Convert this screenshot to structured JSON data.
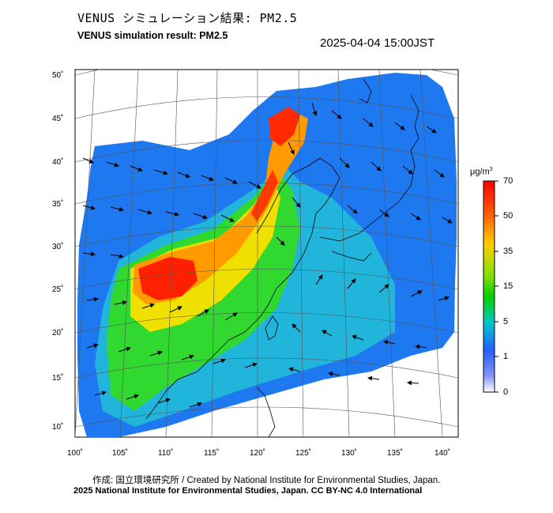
{
  "header": {
    "title_ja": "VENUS シミュレーション結果: PM2.5",
    "title_en": "VENUS simulation result: PM2.5",
    "timestamp": "2025-04-04 15:00JST"
  },
  "footer": {
    "credit": "作成: 国立環境研究所 / Created by National Institute for Environmental Studies, Japan.",
    "copyright": "2025 National Institute for Environmental Studies, Japan. CC BY-NC 4.0 International"
  },
  "map": {
    "lon_ticks": [
      "100˚",
      "105˚",
      "110˚",
      "115˚",
      "120˚",
      "125˚",
      "130˚",
      "135˚",
      "140˚"
    ],
    "lat_ticks": [
      "50˚",
      "45˚",
      "40˚",
      "35˚",
      "30˚",
      "25˚",
      "20˚",
      "15˚",
      "10˚"
    ]
  },
  "colorbar": {
    "unit_base": "μg/m",
    "unit_exp": "3",
    "ticks": [
      "70",
      "50",
      "35",
      "15",
      "5",
      "1",
      "0"
    ],
    "stops": [
      "#ff0000",
      "#ff8000",
      "#ffd000",
      "#00e000",
      "#00d0d0",
      "#1070ff",
      "#ffffff"
    ]
  }
}
